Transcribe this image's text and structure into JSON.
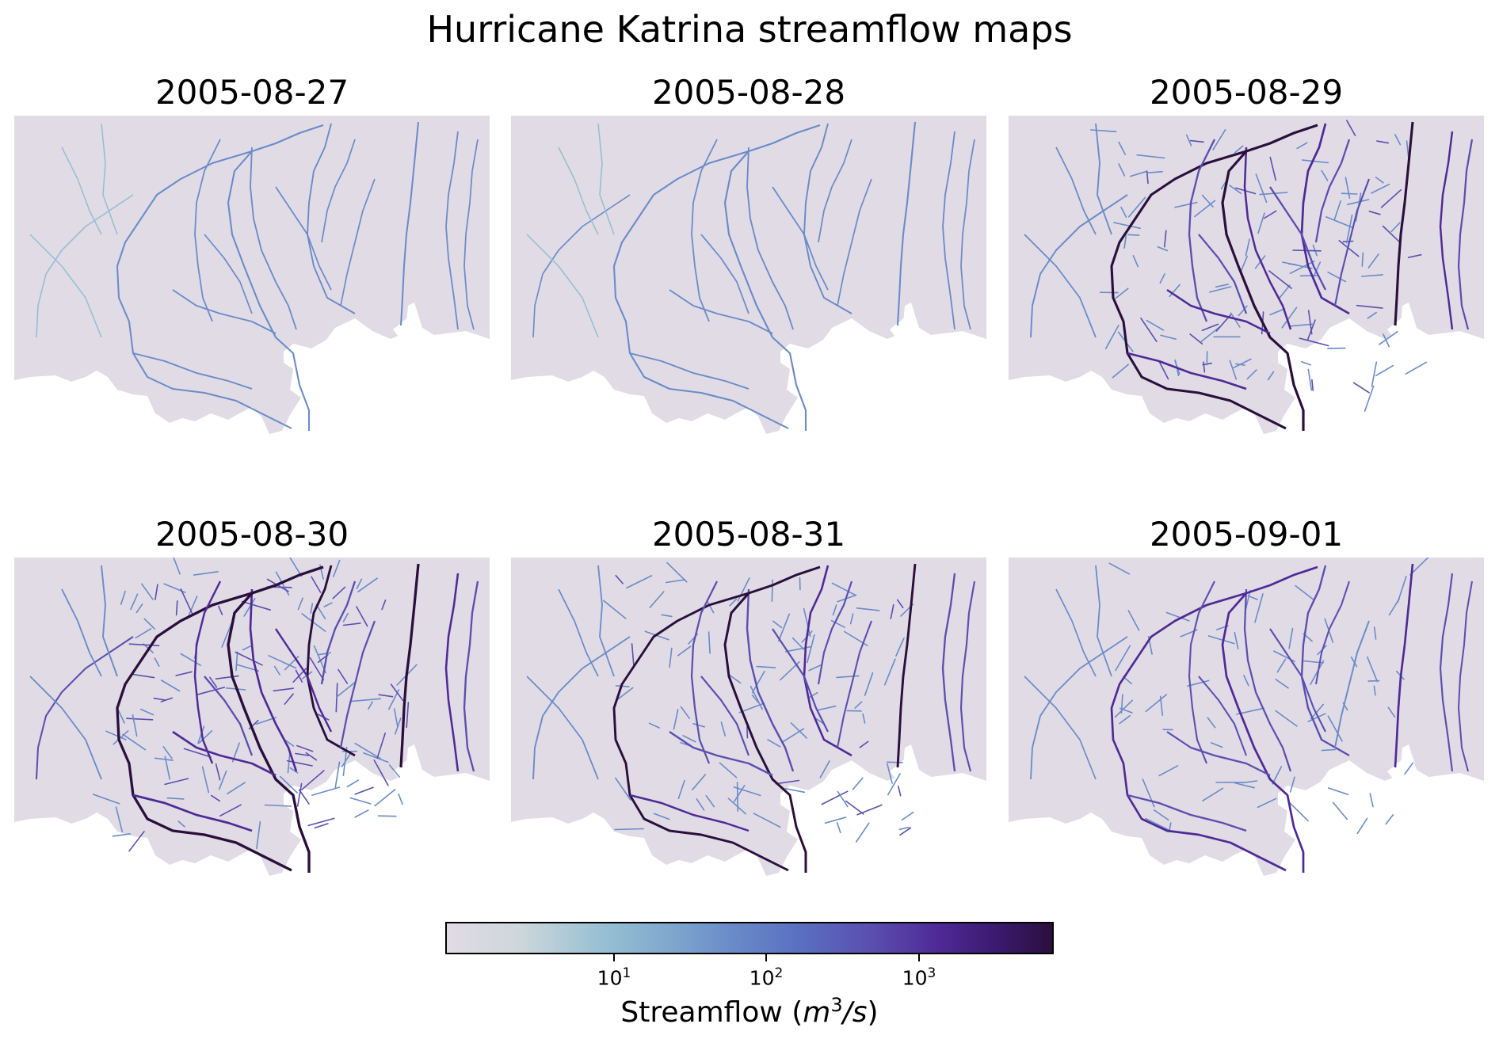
{
  "title": "Hurricane Katrina streamflow maps",
  "panels": [
    {
      "date": "2005-08-27",
      "intensity": 0.0
    },
    {
      "date": "2005-08-28",
      "intensity": 0.05
    },
    {
      "date": "2005-08-29",
      "intensity": 0.85
    },
    {
      "date": "2005-08-30",
      "intensity": 1.0
    },
    {
      "date": "2005-08-31",
      "intensity": 0.7
    },
    {
      "date": "2005-09-01",
      "intensity": 0.5
    }
  ],
  "colorbar": {
    "label_prefix": "Streamflow (",
    "label_var": "m",
    "label_exp": "3",
    "label_unit": "/s",
    "label_suffix": ")",
    "ticks": [
      {
        "base": "10",
        "exp": "1",
        "value": 10
      },
      {
        "base": "10",
        "exp": "2",
        "value": 100
      },
      {
        "base": "10",
        "exp": "3",
        "value": 1000
      }
    ],
    "colors": [
      "#e1dbe5",
      "#96bfd3",
      "#6a8bc9",
      "#5a4fb0",
      "#4f2a97",
      "#2a0f3d"
    ]
  },
  "land_color": "#e1dbe5"
}
